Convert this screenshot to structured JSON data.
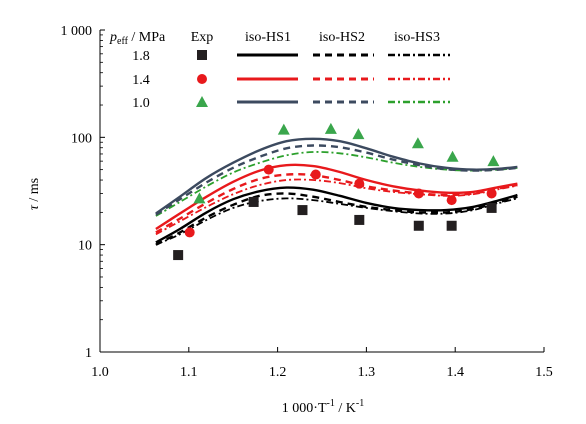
{
  "chart_data": {
    "type": "scatter",
    "xlabel": "1 000·T",
    "xlabel_sup": "-1",
    "xlabel_unit": " / K",
    "xlabel_unit_sup": "-1",
    "ylabel_symbol": "τ",
    "ylabel_unit": " / ms",
    "xlim": [
      1.0,
      1.5
    ],
    "ylim": [
      1,
      1000
    ],
    "yscale": "log",
    "x_ticks": [
      "1.0",
      "1.1",
      "1.2",
      "1.3",
      "1.4",
      "1.5"
    ],
    "y_ticks": [
      "1",
      "10",
      "100",
      "1 000"
    ],
    "grid": false,
    "legend": {
      "header_symbol": "p",
      "header_sub": "eff",
      "header_unit": " / MPa",
      "col_exp": "Exp",
      "col_hs1": "iso-HS1",
      "col_hs2": "iso-HS2",
      "col_hs3": "iso-HS3",
      "placement": "top"
    },
    "groups": [
      {
        "name": "1.8",
        "color": "#000000",
        "marker": "square",
        "exp": {
          "x": [
            1.088,
            1.173,
            1.228,
            1.292,
            1.359,
            1.396,
            1.441
          ],
          "y": [
            8,
            25,
            21,
            17,
            15,
            15,
            22
          ]
        },
        "hs1": {
          "x": [
            1.063,
            1.09,
            1.12,
            1.15,
            1.18,
            1.21,
            1.24,
            1.27,
            1.3,
            1.33,
            1.36,
            1.39,
            1.42,
            1.45,
            1.47
          ],
          "y": [
            10.5,
            14,
            20,
            26.5,
            31.5,
            34,
            32.5,
            28.5,
            24.5,
            22,
            21,
            21,
            22.5,
            26,
            29
          ]
        },
        "hs2": {
          "x": [
            1.063,
            1.09,
            1.12,
            1.15,
            1.18,
            1.21,
            1.24,
            1.27,
            1.3,
            1.33,
            1.36,
            1.39,
            1.42,
            1.45,
            1.47
          ],
          "y": [
            10,
            13,
            18,
            23.5,
            28.5,
            30,
            28,
            25,
            22.5,
            21,
            20,
            20,
            21.5,
            25,
            28
          ]
        },
        "hs3": {
          "x": [
            1.063,
            1.09,
            1.12,
            1.15,
            1.18,
            1.21,
            1.24,
            1.27,
            1.3,
            1.33,
            1.36,
            1.39,
            1.42,
            1.45,
            1.47
          ],
          "y": [
            10,
            12.5,
            17,
            22,
            25.5,
            27,
            26,
            24,
            22,
            20.5,
            19.5,
            19.5,
            21,
            24.5,
            27
          ]
        }
      },
      {
        "name": "1.4",
        "color": "#e8191c",
        "marker": "circle",
        "exp": {
          "x": [
            1.101,
            1.19,
            1.243,
            1.292,
            1.359,
            1.396,
            1.441
          ],
          "y": [
            13,
            50,
            45,
            37,
            30,
            26,
            30
          ]
        },
        "hs1": {
          "x": [
            1.063,
            1.09,
            1.12,
            1.15,
            1.18,
            1.21,
            1.24,
            1.27,
            1.3,
            1.33,
            1.36,
            1.39,
            1.42,
            1.45,
            1.47
          ],
          "y": [
            14,
            19.5,
            28,
            38.5,
            49,
            55,
            54,
            47.5,
            40,
            35,
            32,
            30.5,
            31,
            34.5,
            37
          ]
        },
        "hs2": {
          "x": [
            1.063,
            1.09,
            1.12,
            1.15,
            1.18,
            1.21,
            1.24,
            1.27,
            1.3,
            1.33,
            1.36,
            1.39,
            1.42,
            1.45,
            1.47
          ],
          "y": [
            13,
            17.5,
            24.5,
            33,
            41,
            45,
            44.5,
            40,
            35,
            32,
            30,
            29,
            30,
            33.5,
            36
          ]
        },
        "hs3": {
          "x": [
            1.063,
            1.09,
            1.12,
            1.15,
            1.18,
            1.21,
            1.24,
            1.27,
            1.3,
            1.33,
            1.36,
            1.39,
            1.42,
            1.45,
            1.47
          ],
          "y": [
            12.5,
            16.5,
            22.5,
            29.5,
            36,
            40,
            40,
            37.5,
            33.5,
            31,
            29.5,
            28.5,
            29.5,
            33,
            35.5
          ]
        }
      },
      {
        "name": "1.0",
        "color": "#2ca02c",
        "marker": "triangle",
        "exp": {
          "x": [
            1.112,
            1.207,
            1.26,
            1.291,
            1.358,
            1.397,
            1.443
          ],
          "y": [
            27,
            118,
            120,
            107,
            88,
            66,
            60
          ]
        },
        "hs1": {
          "x": [
            1.063,
            1.09,
            1.12,
            1.15,
            1.18,
            1.21,
            1.24,
            1.27,
            1.3,
            1.33,
            1.36,
            1.39,
            1.42,
            1.45,
            1.47
          ],
          "y": [
            19.5,
            28,
            42,
            58,
            76,
            92,
            97,
            92,
            79,
            66,
            57,
            52,
            50,
            51,
            53
          ]
        },
        "hs2": {
          "x": [
            1.063,
            1.09,
            1.12,
            1.15,
            1.18,
            1.21,
            1.24,
            1.27,
            1.3,
            1.33,
            1.36,
            1.39,
            1.42,
            1.45,
            1.47
          ],
          "y": [
            19,
            26.5,
            38,
            52,
            66,
            79,
            84,
            81,
            72,
            62,
            55,
            50.5,
            49,
            50,
            52
          ]
        },
        "hs3": {
          "x": [
            1.063,
            1.09,
            1.12,
            1.15,
            1.18,
            1.21,
            1.24,
            1.27,
            1.3,
            1.33,
            1.36,
            1.39,
            1.42,
            1.45,
            1.47
          ],
          "y": [
            18.5,
            25,
            35,
            47,
            58,
            68,
            73,
            71,
            65,
            58,
            53,
            50,
            49,
            50,
            52
          ]
        }
      }
    ],
    "model_colors": {
      "1.8": "#000000",
      "1.4": "#e8191c",
      "1.0": "#2ca02c",
      "hs1_1.0": "#3c4a5f",
      "hs2_1.0": "#3c4a5f"
    }
  }
}
